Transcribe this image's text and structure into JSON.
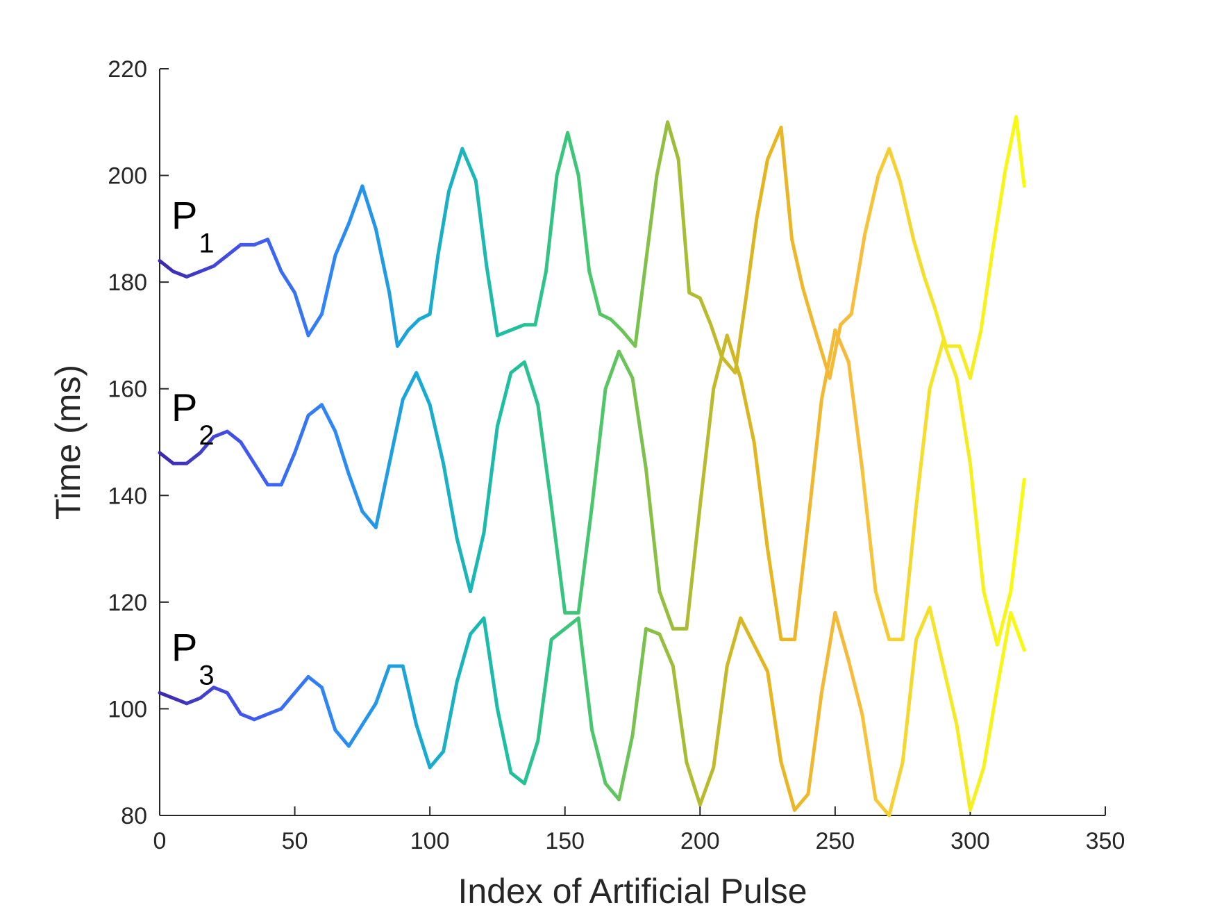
{
  "chart_data": {
    "type": "line",
    "xlabel": "Index of Artificial Pulse",
    "ylabel": "Time (ms)",
    "xlim": [
      0,
      350
    ],
    "ylim": [
      80,
      220
    ],
    "xticks": [
      0,
      50,
      100,
      150,
      200,
      250,
      300,
      350
    ],
    "yticks": [
      80,
      100,
      120,
      140,
      160,
      180,
      200,
      220
    ],
    "grid": false,
    "colormap": [
      "#3e26a8",
      "#4256f0",
      "#2d87f8",
      "#17a9d6",
      "#1cbfa2",
      "#47c86c",
      "#a3bd35",
      "#e6b51d",
      "#f8ba3c",
      "#f4e626",
      "#f9fb0e"
    ],
    "series": [
      {
        "name": "P",
        "subscript": "1",
        "x": [
          0,
          5,
          10,
          15,
          20,
          25,
          30,
          35,
          40,
          45,
          50,
          55,
          60,
          65,
          70,
          75,
          80,
          85,
          88,
          92,
          96,
          100,
          103,
          107,
          112,
          117,
          121,
          125,
          130,
          135,
          139,
          143,
          147,
          151,
          155,
          159,
          163,
          167,
          171,
          176,
          180,
          184,
          188,
          192,
          196,
          200,
          204,
          208,
          213,
          217,
          221,
          225,
          230,
          234,
          238,
          242,
          248,
          252,
          256,
          261,
          266,
          270,
          274,
          279,
          283,
          287,
          291,
          296,
          300,
          304,
          308,
          313,
          317,
          320
        ],
        "y": [
          184,
          182,
          181,
          182,
          183,
          185,
          187,
          187,
          188,
          182,
          178,
          170,
          174,
          185,
          191,
          198,
          190,
          178,
          168,
          171,
          173,
          174,
          185,
          197,
          205,
          199,
          183,
          170,
          171,
          172,
          172,
          182,
          200,
          208,
          200,
          182,
          174,
          173,
          171,
          168,
          184,
          200,
          210,
          203,
          178,
          177,
          172,
          166,
          163,
          177,
          192,
          203,
          209,
          188,
          179,
          172,
          162,
          172,
          174,
          189,
          200,
          205,
          199,
          188,
          181,
          175,
          168,
          168,
          162,
          171,
          185,
          201,
          211,
          198
        ]
      },
      {
        "name": "P",
        "subscript": "2",
        "x": [
          0,
          5,
          10,
          15,
          20,
          25,
          30,
          35,
          40,
          45,
          50,
          55,
          60,
          65,
          70,
          75,
          80,
          85,
          90,
          95,
          100,
          105,
          110,
          115,
          120,
          125,
          130,
          135,
          140,
          145,
          150,
          155,
          160,
          165,
          170,
          175,
          180,
          185,
          190,
          195,
          200,
          205,
          210,
          215,
          220,
          225,
          230,
          235,
          240,
          245,
          250,
          255,
          260,
          265,
          270,
          275,
          280,
          285,
          290,
          295,
          300,
          305,
          310,
          315,
          320
        ],
        "y": [
          148,
          146,
          146,
          148,
          151,
          152,
          150,
          146,
          142,
          142,
          148,
          155,
          157,
          152,
          144,
          137,
          134,
          146,
          158,
          163,
          157,
          146,
          132,
          122,
          133,
          153,
          163,
          165,
          157,
          138,
          118,
          118,
          138,
          160,
          167,
          162,
          145,
          122,
          115,
          115,
          138,
          160,
          170,
          162,
          150,
          130,
          113,
          113,
          135,
          158,
          171,
          165,
          145,
          122,
          113,
          113,
          138,
          160,
          169,
          162,
          146,
          122,
          112,
          122,
          143
        ]
      },
      {
        "name": "P",
        "subscript": "3",
        "x": [
          0,
          5,
          10,
          15,
          20,
          25,
          30,
          35,
          40,
          45,
          50,
          55,
          60,
          65,
          70,
          75,
          80,
          85,
          90,
          95,
          100,
          105,
          110,
          115,
          120,
          125,
          130,
          135,
          140,
          145,
          150,
          155,
          160,
          165,
          170,
          175,
          180,
          185,
          190,
          195,
          200,
          205,
          210,
          215,
          220,
          225,
          230,
          235,
          240,
          245,
          250,
          255,
          260,
          265,
          270,
          275,
          280,
          285,
          290,
          295,
          300,
          305,
          310,
          315,
          320
        ],
        "y": [
          103,
          102,
          101,
          102,
          104,
          103,
          99,
          98,
          99,
          100,
          103,
          106,
          104,
          96,
          93,
          97,
          101,
          108,
          108,
          97,
          89,
          92,
          105,
          114,
          117,
          100,
          88,
          86,
          94,
          113,
          115,
          117,
          96,
          86,
          83,
          95,
          115,
          114,
          108,
          90,
          82,
          89,
          108,
          117,
          112,
          107,
          90,
          81,
          84,
          103,
          118,
          109,
          99,
          83,
          80,
          90,
          113,
          119,
          108,
          97,
          81,
          89,
          104,
          118,
          111
        ]
      }
    ]
  }
}
